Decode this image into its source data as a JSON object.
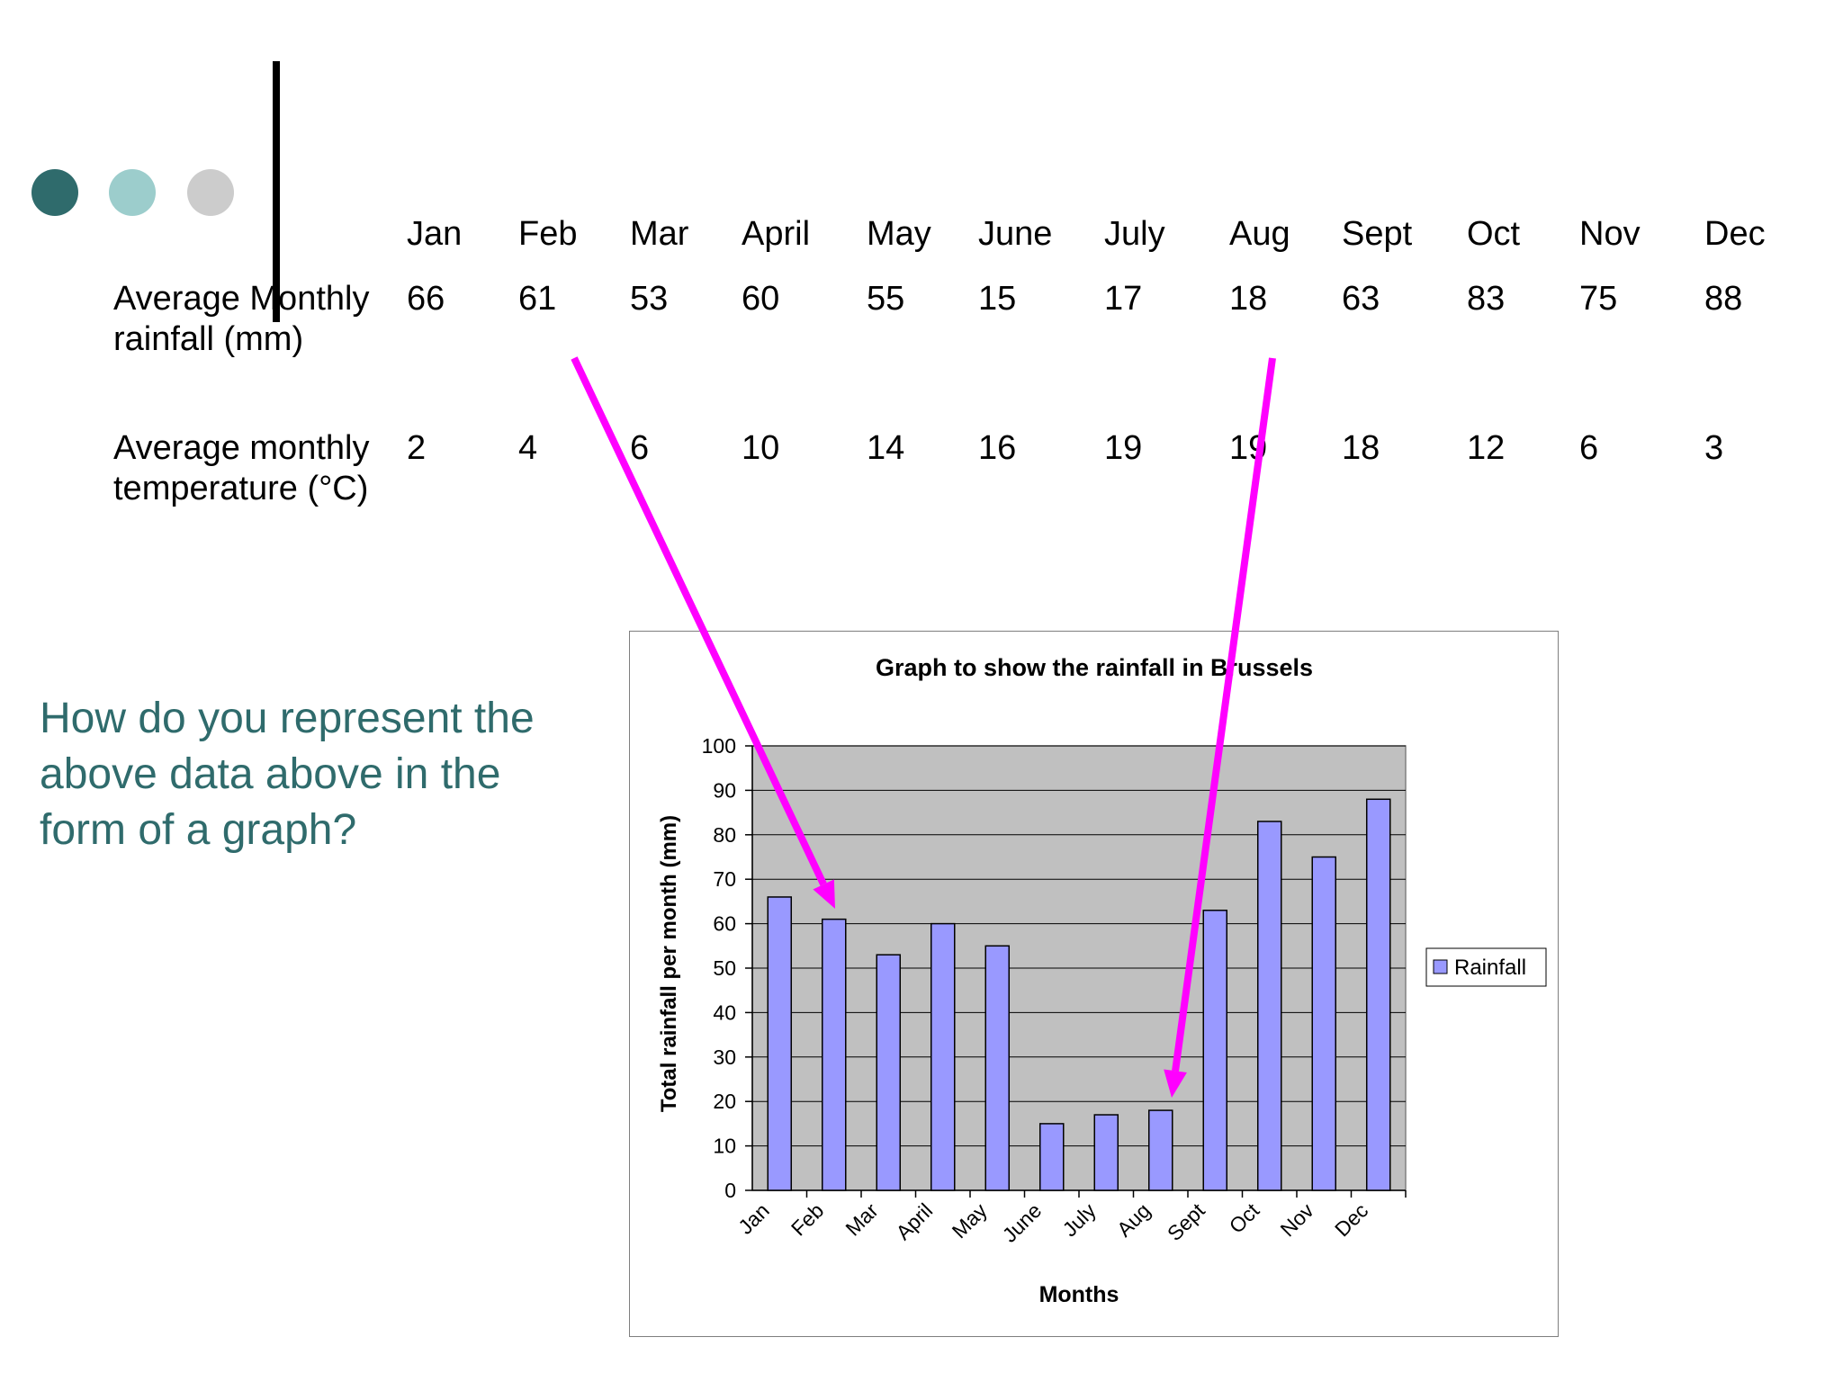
{
  "slide": {
    "accent_colors": [
      "#2f6b6c",
      "#9ccdcc",
      "#cccccc"
    ],
    "question": "How do you represent the above data above in the form of a graph?"
  },
  "table": {
    "months": [
      "Jan",
      "Feb",
      "Mar",
      "April",
      "May",
      "June",
      "July",
      "Aug",
      "Sept",
      "Oct",
      "Nov",
      "Dec"
    ],
    "rows": [
      {
        "label": "Average Monthly rainfall (mm)",
        "values": [
          "66",
          "61",
          "53",
          "60",
          "55",
          "15",
          "17",
          "18",
          "63",
          "83",
          "75",
          "88"
        ]
      },
      {
        "label": "Average monthly temperature (°C)",
        "values": [
          "2",
          "4",
          "6",
          "10",
          "14",
          "16",
          "19",
          "19",
          "18",
          "12",
          "6",
          "3"
        ]
      }
    ]
  },
  "annotations": {
    "arrow_color": "#ff00ff",
    "arrows": [
      {
        "from_month": "Feb",
        "to_month": "Feb"
      },
      {
        "from_month": "Aug",
        "to_month": "Aug"
      }
    ]
  },
  "chart_data": {
    "type": "bar",
    "title": "Graph to show the rainfall in Brussels",
    "xlabel": "Months",
    "ylabel": "Total rainfall per month (mm)",
    "categories": [
      "Jan",
      "Feb",
      "Mar",
      "April",
      "May",
      "June",
      "July",
      "Aug",
      "Sept",
      "Oct",
      "Nov",
      "Dec"
    ],
    "series": [
      {
        "name": "Rainfall",
        "values": [
          66,
          61,
          53,
          60,
          55,
          15,
          17,
          18,
          63,
          83,
          75,
          88
        ],
        "color": "#9999ff"
      }
    ],
    "ylim": [
      0,
      100
    ],
    "yticks": [
      0,
      10,
      20,
      30,
      40,
      50,
      60,
      70,
      80,
      90,
      100
    ],
    "grid": true,
    "plot_background": "#c0c0c0",
    "legend": {
      "position": "right",
      "entries": [
        "Rainfall"
      ]
    }
  }
}
